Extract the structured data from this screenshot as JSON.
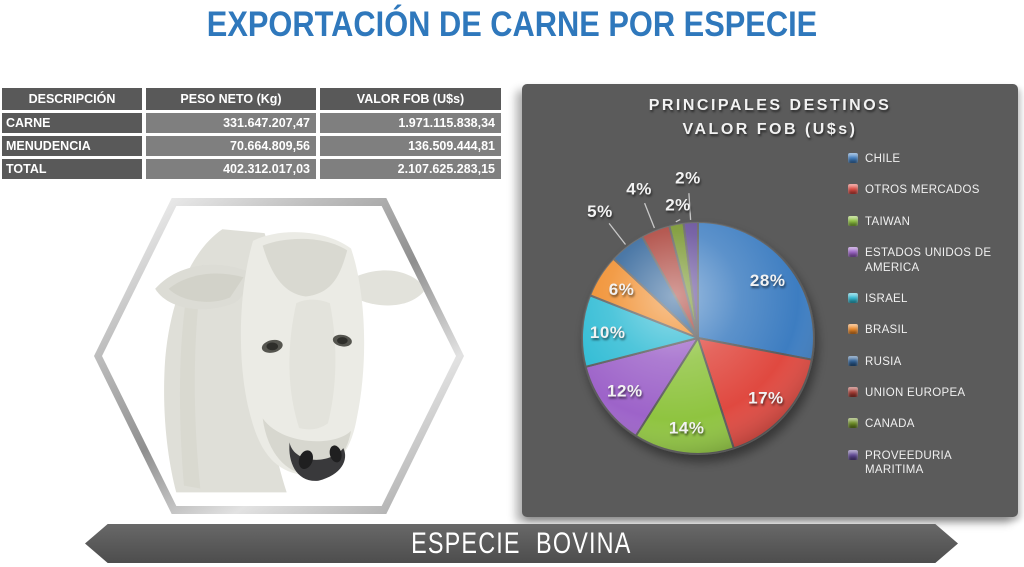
{
  "title": "EXPORTACIÓN DE CARNE POR ESPECIE",
  "table": {
    "headers": [
      "DESCRIPCIÓN",
      "PESO NETO (Kg)",
      "VALOR FOB (U$s)"
    ],
    "rows": [
      {
        "label": "CARNE",
        "peso": "331.647.207,47",
        "valor": "1.971.115.838,34"
      },
      {
        "label": "MENUDENCIA",
        "peso": "70.664.809,56",
        "valor": "136.509.444,81"
      },
      {
        "label": "TOTAL",
        "peso": "402.312.017,03",
        "valor": "2.107.625.283,15"
      }
    ]
  },
  "hexagon_image": {
    "icon": "cow-photo"
  },
  "banner": {
    "label": "ESPECIE  BOVINA"
  },
  "theme": {
    "accent_blue": "#2F78BC",
    "panel_gray": "#5B5B5B",
    "table_header_gray": "#595959",
    "table_value_gray": "#7F7F7F",
    "banner_gray": "#595959"
  },
  "chart_data": {
    "type": "pie",
    "title_lines": [
      "PRINCIPALES DESTINOS",
      "VALOR FOB (U$s)"
    ],
    "labels": [
      "CHILE",
      "OTROS MERCADOS",
      "TAIWAN",
      "ESTADOS UNIDOS DE AMERICA",
      "ISRAEL",
      "BRASIL",
      "RUSIA",
      "UNION EUROPEA",
      "CANADA",
      "PROVEEDURIA MARITIMA"
    ],
    "values": [
      28,
      17,
      14,
      12,
      10,
      6,
      5,
      4,
      2,
      2
    ],
    "unit": "%",
    "colors": [
      "#3E7DC1",
      "#E04A41",
      "#8FC43F",
      "#9D63C9",
      "#2FBBD4",
      "#F08A28",
      "#2C5F96",
      "#A83B33",
      "#6F9024",
      "#5F4796"
    ],
    "legend_position": "right",
    "start_angle": 0,
    "direction": "clockwise",
    "label_style": "percent",
    "effect": "3d-gloss"
  }
}
